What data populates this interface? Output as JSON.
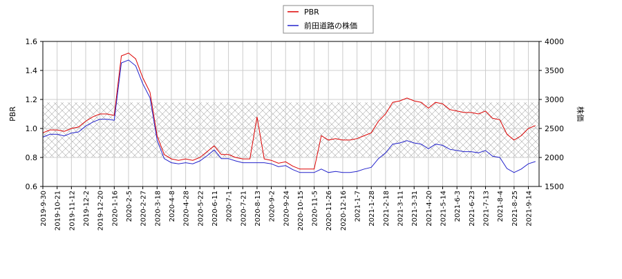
{
  "chart_data": {
    "type": "line",
    "categories": [
      "2019-9-30",
      null,
      "2019-10-21",
      null,
      "2019-11-12",
      null,
      "2019-12-2",
      null,
      "2019-12-20",
      null,
      "2020-1-16",
      null,
      "2020-2-5",
      null,
      "2020-2-27",
      null,
      "2020-3-18",
      null,
      "2020-4-8",
      null,
      "2020-4-28",
      null,
      "2020-5-22",
      null,
      "2020-6-11",
      null,
      "2020-7-1",
      null,
      "2020-7-21",
      null,
      "2020-8-13",
      null,
      "2020-9-2",
      null,
      "2020-9-24",
      null,
      "2020-10-15",
      null,
      "2020-11-5",
      null,
      "2020-11-26",
      null,
      "2020-12-16",
      null,
      "2021-1-7",
      null,
      "2021-1-28",
      null,
      "2021-2-18",
      null,
      "2021-3-11",
      null,
      "2021-3-31",
      null,
      "2021-4-20",
      null,
      "2021-5-14",
      null,
      "2021-6-3",
      null,
      "2021-6-23",
      null,
      "2021-7-13",
      null,
      "2021-8-4",
      null,
      "2021-8-25",
      null,
      "2021-9-14",
      null
    ],
    "series": [
      {
        "name": "PBR",
        "color": "#dd0000",
        "axis": "y",
        "values": [
          0.97,
          0.99,
          0.99,
          0.98,
          1.0,
          1.01,
          1.05,
          1.08,
          1.1,
          1.1,
          1.09,
          1.5,
          1.52,
          1.48,
          1.35,
          1.25,
          0.95,
          0.82,
          0.79,
          0.78,
          0.79,
          0.78,
          0.8,
          0.84,
          0.88,
          0.82,
          0.82,
          0.8,
          0.79,
          0.79,
          1.08,
          0.79,
          0.78,
          0.76,
          0.77,
          0.74,
          0.72,
          0.72,
          0.72,
          0.95,
          0.92,
          0.93,
          0.92,
          0.92,
          0.93,
          0.95,
          0.97,
          1.05,
          1.1,
          1.18,
          1.19,
          1.21,
          1.19,
          1.18,
          1.14,
          1.18,
          1.17,
          1.13,
          1.12,
          1.11,
          1.11,
          1.1,
          1.12,
          1.07,
          1.06,
          0.96,
          0.92,
          0.95,
          1.0,
          1.02
        ]
      },
      {
        "name": "前田道路の株価",
        "color": "#2222cc",
        "axis": "y2",
        "values": [
          2350,
          2400,
          2400,
          2370,
          2420,
          2440,
          2540,
          2610,
          2660,
          2660,
          2640,
          3630,
          3680,
          3580,
          3270,
          3030,
          2300,
          1980,
          1910,
          1890,
          1910,
          1890,
          1940,
          2030,
          2130,
          1980,
          1980,
          1940,
          1910,
          1910,
          1910,
          1910,
          1890,
          1840,
          1860,
          1790,
          1740,
          1740,
          1740,
          1800,
          1740,
          1760,
          1740,
          1740,
          1760,
          1800,
          1830,
          1980,
          2080,
          2230,
          2250,
          2290,
          2250,
          2230,
          2150,
          2230,
          2210,
          2140,
          2120,
          2100,
          2100,
          2080,
          2120,
          2020,
          2000,
          1810,
          1740,
          1800,
          1890,
          1930
        ]
      }
    ],
    "ylabel": "PBR",
    "y2label": "株価",
    "ylim": [
      0.6,
      1.6
    ],
    "yticks": [
      0.6,
      0.8,
      {
        "value": 1,
        "label": "1.0"
      },
      1.2,
      1.4,
      1.6
    ],
    "y2lim": [
      1500,
      4000
    ],
    "y2ticks": [
      1500,
      2000,
      2500,
      3000,
      3500,
      4000
    ],
    "band": [
      0.8,
      1.18
    ],
    "grid": true,
    "legend": "top"
  }
}
